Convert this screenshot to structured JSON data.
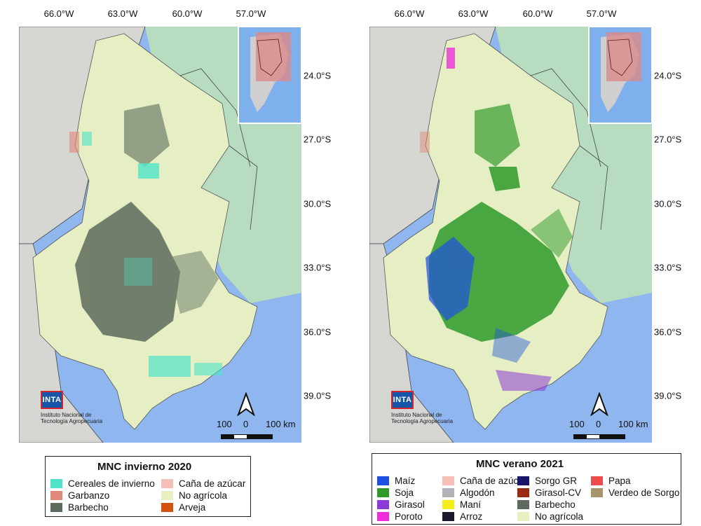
{
  "coordinates": {
    "longitudes": [
      "66.0°W",
      "63.0°W",
      "60.0°W",
      "57.0°W"
    ],
    "latitudes": [
      "24.0°S",
      "27.0°S",
      "30.0°S",
      "33.0°S",
      "36.0°S",
      "39.0°S"
    ]
  },
  "logo": {
    "mark": "INTA",
    "line1": "Instituto Nacional de",
    "line2": "Tecnología Agropecuaria"
  },
  "scale": {
    "left": "100",
    "middle": "0",
    "right": "100 km"
  },
  "north_icon": "north-arrow-icon",
  "colors": {
    "water": "#8fb6ee",
    "land_outside": "#d6d6d3",
    "neighbor_green": "#b7dcc0",
    "study_area": "#e6efc4",
    "inset_bg": "#7fb0ee",
    "inset_region": "#d98a8a"
  },
  "left_map": {
    "legend": {
      "title": "MNC invierno 2020",
      "items": [
        {
          "label": "Cereales de invierno",
          "color": "#4ee3c8"
        },
        {
          "label": "Caña de azúcar",
          "color": "#f6c0b8"
        },
        {
          "label": "Garbanzo",
          "color": "#e0897a"
        },
        {
          "label": "No agrícola",
          "color": "#e6f0c0"
        },
        {
          "label": "Barbecho",
          "color": "#5d6b5c"
        },
        {
          "label": "Arveja",
          "color": "#d2520f"
        }
      ]
    }
  },
  "right_map": {
    "legend": {
      "title": "MNC verano 2021",
      "items": [
        {
          "label": "Maíz",
          "color": "#1e4fe0"
        },
        {
          "label": "Caña de azúcar",
          "color": "#f6c0b8"
        },
        {
          "label": "Sorgo GR",
          "color": "#171668"
        },
        {
          "label": "Papa",
          "color": "#ee4c4c"
        },
        {
          "label": "Soja",
          "color": "#2f9a2a"
        },
        {
          "label": "Algodón",
          "color": "#b0b4b8"
        },
        {
          "label": "Girasol-CV",
          "color": "#9a2a12"
        },
        {
          "label": "Verdeo de Sorgo",
          "color": "#a89468"
        },
        {
          "label": "Girasol",
          "color": "#8a3ad6"
        },
        {
          "label": "Maní",
          "color": "#f6ee18"
        },
        {
          "label": "Barbecho",
          "color": "#5d6b5c"
        },
        {
          "label": "Poroto",
          "color": "#ee2ed8"
        },
        {
          "label": "Arroz",
          "color": "#1a1a2a"
        },
        {
          "label": "No agrícola",
          "color": "#e6f0c0"
        }
      ]
    }
  }
}
